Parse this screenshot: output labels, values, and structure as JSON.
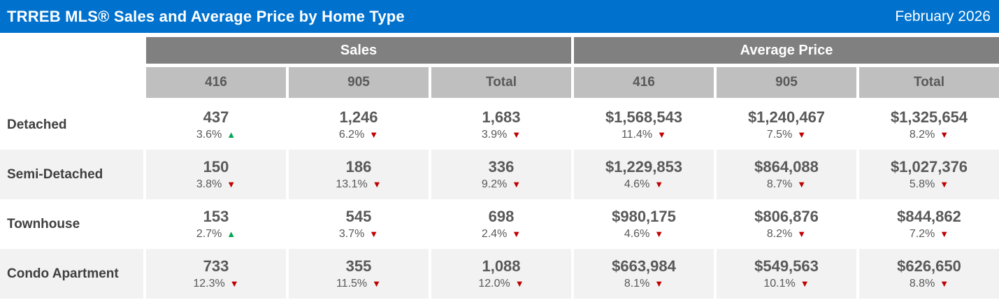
{
  "header": {
    "title": "TRREB MLS® Sales and Average Price by Home Type",
    "period": "February 2026"
  },
  "chart_data": {
    "type": "table",
    "title": "TRREB MLS® Sales and Average Price by Home Type",
    "period": "February 2026",
    "column_groups": [
      {
        "label": "Sales"
      },
      {
        "label": "Average Price"
      }
    ],
    "columns": [
      "416",
      "905",
      "Total",
      "416",
      "905",
      "Total"
    ],
    "rows": [
      {
        "label": "Detached",
        "cells": [
          {
            "value": "437",
            "change": "3.6%",
            "dir": "up"
          },
          {
            "value": "1,246",
            "change": "6.2%",
            "dir": "down"
          },
          {
            "value": "1,683",
            "change": "3.9%",
            "dir": "down"
          },
          {
            "value": "$1,568,543",
            "change": "11.4%",
            "dir": "down"
          },
          {
            "value": "$1,240,467",
            "change": "7.5%",
            "dir": "down"
          },
          {
            "value": "$1,325,654",
            "change": "8.2%",
            "dir": "down"
          }
        ]
      },
      {
        "label": "Semi-Detached",
        "cells": [
          {
            "value": "150",
            "change": "3.8%",
            "dir": "down"
          },
          {
            "value": "186",
            "change": "13.1%",
            "dir": "down"
          },
          {
            "value": "336",
            "change": "9.2%",
            "dir": "down"
          },
          {
            "value": "$1,229,853",
            "change": "4.6%",
            "dir": "down"
          },
          {
            "value": "$864,088",
            "change": "8.7%",
            "dir": "down"
          },
          {
            "value": "$1,027,376",
            "change": "5.8%",
            "dir": "down"
          }
        ]
      },
      {
        "label": "Townhouse",
        "cells": [
          {
            "value": "153",
            "change": "2.7%",
            "dir": "up"
          },
          {
            "value": "545",
            "change": "3.7%",
            "dir": "down"
          },
          {
            "value": "698",
            "change": "2.4%",
            "dir": "down"
          },
          {
            "value": "$980,175",
            "change": "4.6%",
            "dir": "down"
          },
          {
            "value": "$806,876",
            "change": "8.2%",
            "dir": "down"
          },
          {
            "value": "$844,862",
            "change": "7.2%",
            "dir": "down"
          }
        ]
      },
      {
        "label": "Condo Apartment",
        "cells": [
          {
            "value": "733",
            "change": "12.3%",
            "dir": "down"
          },
          {
            "value": "355",
            "change": "11.5%",
            "dir": "down"
          },
          {
            "value": "1,088",
            "change": "12.0%",
            "dir": "down"
          },
          {
            "value": "$663,984",
            "change": "8.1%",
            "dir": "down"
          },
          {
            "value": "$549,563",
            "change": "10.1%",
            "dir": "down"
          },
          {
            "value": "$626,650",
            "change": "8.8%",
            "dir": "down"
          }
        ]
      }
    ]
  },
  "colors": {
    "brand-blue": "#0072CE",
    "group-gray": "#808080",
    "sub-gray": "#BFBFBF",
    "stripe": "#F2F2F2",
    "up": "#00A651",
    "down": "#C00000"
  }
}
